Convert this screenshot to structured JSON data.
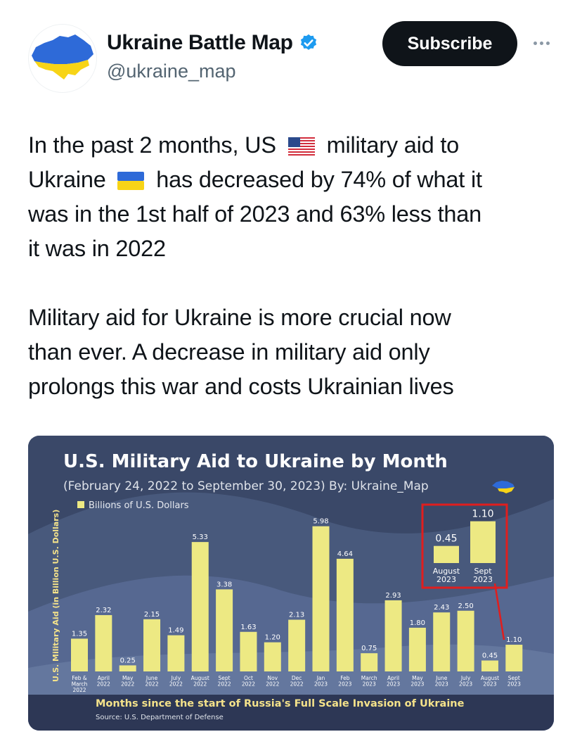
{
  "account": {
    "display_name": "Ukraine Battle Map",
    "handle": "@ukraine_map",
    "verified": true,
    "avatar_icon": "ukraine-map-icon",
    "subscribe_label": "Subscribe",
    "more_icon": "more-icon"
  },
  "tweet": {
    "line1_part1": "In the past 2 months, US",
    "line1_part2": "military aid to",
    "line2_part1": "Ukraine",
    "line2_part2": "has decreased by 74% of what it",
    "line3": "was in the 1st half of 2023 and 63% less than",
    "line4": "it was in 2022",
    "line5": "Military aid for Ukraine is more crucial now",
    "line6": "than ever. A decrease in military aid only",
    "line7": "prolongs this war and costs Ukrainian lives",
    "emoji_us": "us-flag-icon",
    "emoji_ua": "ukraine-flag-icon"
  },
  "colors": {
    "bar": "#ede983",
    "title": "#ffffff",
    "subtitle": "#dfe3ea",
    "highlight": "#e01e1e",
    "xlabel": "#f4e28a",
    "flag_blue": "#2e6ad8",
    "flag_yellow": "#f7d417"
  },
  "chart_data": {
    "type": "bar",
    "title": "U.S. Military Aid to Ukraine by Month",
    "subtitle": "(February 24, 2022 to September 30, 2023)  By: Ukraine_Map",
    "legend": "Billions of U.S. Dollars",
    "ylabel": "U.S. Military Aid (in Billion U.S. Dollars)",
    "xlabel": "Months since the start of Russia's Full Scale Invasion of Ukraine",
    "source": "Source: U.S. Department of Defense",
    "ylim": [
      0,
      6.5
    ],
    "categories": [
      [
        "Feb &",
        "March",
        "2022"
      ],
      [
        "April",
        "2022"
      ],
      [
        "May",
        "2022"
      ],
      [
        "June",
        "2022"
      ],
      [
        "July",
        "2022"
      ],
      [
        "August",
        "2022"
      ],
      [
        "Sept",
        "2022"
      ],
      [
        "Oct",
        "2022"
      ],
      [
        "Nov",
        "2022"
      ],
      [
        "Dec",
        "2022"
      ],
      [
        "Jan",
        "2023"
      ],
      [
        "Feb",
        "2023"
      ],
      [
        "March",
        "2023"
      ],
      [
        "April",
        "2023"
      ],
      [
        "May",
        "2023"
      ],
      [
        "June",
        "2023"
      ],
      [
        "July",
        "2023"
      ],
      [
        "August",
        "2023"
      ],
      [
        "Sept",
        "2023"
      ]
    ],
    "values": [
      1.35,
      2.32,
      0.25,
      2.15,
      1.49,
      5.33,
      3.38,
      1.63,
      1.2,
      2.13,
      5.98,
      4.64,
      0.75,
      2.93,
      1.8,
      2.43,
      2.5,
      0.45,
      1.1
    ],
    "value_labels": [
      "1.35",
      "2.32",
      "0.25",
      "2.15",
      "1.49",
      "5.33",
      "3.38",
      "1.63",
      "1.20",
      "2.13",
      "5.98",
      "4.64",
      "0.75",
      "2.93",
      "1.80",
      "2.43",
      "2.50",
      "0.45",
      "1.10"
    ],
    "inset": {
      "categories": [
        [
          "August",
          "2023"
        ],
        [
          "Sept",
          "2023"
        ]
      ],
      "values": [
        0.45,
        1.1
      ],
      "value_labels": [
        "0.45",
        "1.10"
      ]
    }
  }
}
